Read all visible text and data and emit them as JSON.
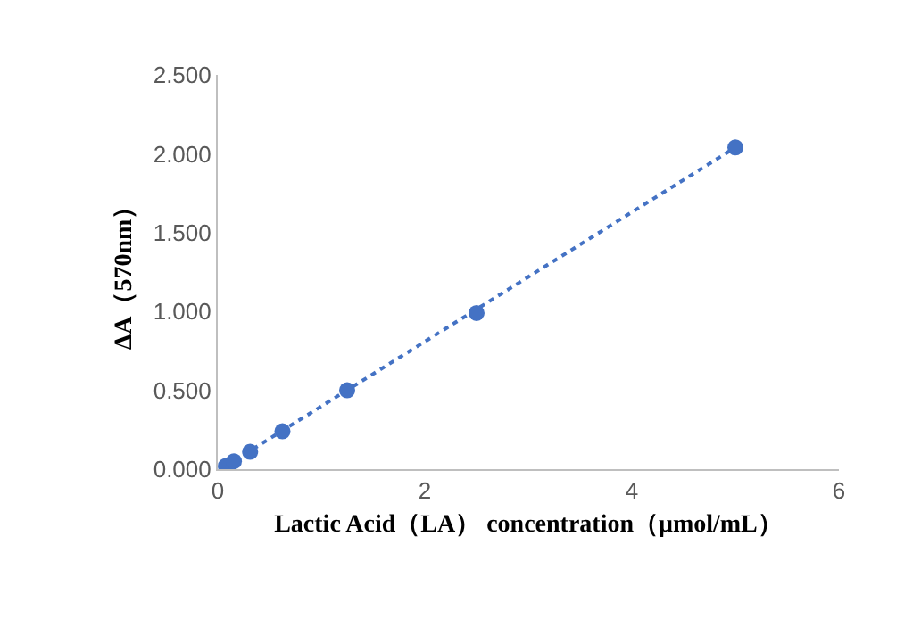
{
  "chart_data": {
    "type": "scatter",
    "xlabel": "Lactic Acid（LA） concentration（μmol/mL）",
    "ylabel": "ΔA（570nm）",
    "x": [
      0.078,
      0.156,
      0.3125,
      0.625,
      1.25,
      2.5,
      5
    ],
    "series": [
      {
        "type": "line",
        "color": "#4472c4",
        "x": [
          0.078,
          5
        ],
        "values": [
          0.02,
          2.04
        ],
        "line_style": "dotted"
      },
      {
        "color": "#4472c4",
        "values": [
          0.02,
          0.05,
          0.11,
          0.24,
          0.5,
          0.99,
          2.04
        ],
        "marker": "circle"
      }
    ],
    "xlim": [
      0,
      6
    ],
    "xticks": [
      0,
      2,
      4,
      6
    ],
    "ylim": [
      0,
      2.5
    ],
    "yticks": [
      {
        "value": 0,
        "label": "0.000"
      },
      {
        "value": 0.5,
        "label": "0.500"
      },
      {
        "value": 1,
        "label": "1.000"
      },
      {
        "value": 1.5,
        "label": "1.500"
      },
      {
        "value": 2,
        "label": "2.000"
      },
      {
        "value": 2.5,
        "label": "2.500"
      }
    ]
  }
}
